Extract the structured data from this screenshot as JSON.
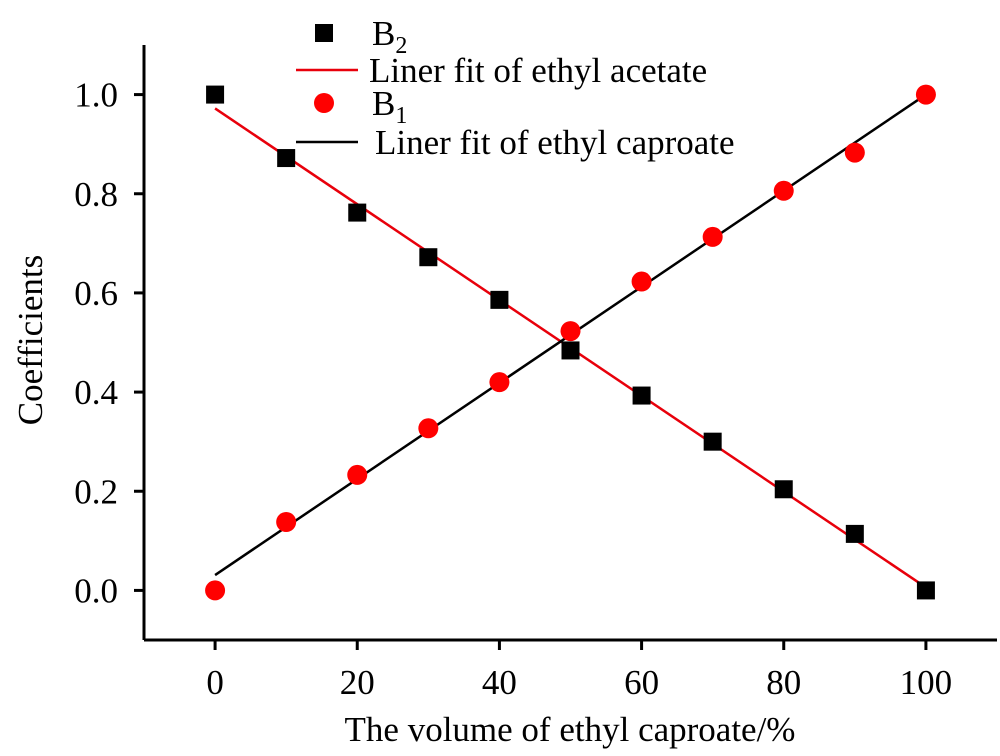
{
  "chart_data": {
    "type": "scatter",
    "title": "",
    "xlabel": "The volume of ethyl caproate/%",
    "ylabel": "Coefficients",
    "xlim": [
      -10,
      110
    ],
    "ylim": [
      -0.1,
      1.1
    ],
    "xticks": [
      0,
      20,
      40,
      60,
      80,
      100
    ],
    "yticks": [
      0.0,
      0.2,
      0.4,
      0.6,
      0.8,
      1.0
    ],
    "xtick_labels": [
      "0",
      "20",
      "40",
      "60",
      "80",
      "100"
    ],
    "ytick_labels": [
      "0.0",
      "0.2",
      "0.4",
      "0.6",
      "0.8",
      "1.0"
    ],
    "grid": false,
    "legend_position": "top-center",
    "series": [
      {
        "name": "B2",
        "name_base": "B",
        "name_sub": "2",
        "kind": "scatter",
        "marker": "square",
        "color": "#000000",
        "x": [
          0,
          10,
          20,
          30,
          40,
          50,
          60,
          70,
          80,
          90,
          100
        ],
        "y": [
          1.0,
          0.872,
          0.762,
          0.672,
          0.586,
          0.484,
          0.393,
          0.3,
          0.204,
          0.114,
          0.0
        ]
      },
      {
        "name": "Liner fit of ethyl acetate",
        "kind": "line",
        "color": "#e8000b",
        "x": [
          0,
          100
        ],
        "y": [
          0.972,
          0.006
        ]
      },
      {
        "name": "B1",
        "name_base": "B",
        "name_sub": "1",
        "kind": "scatter",
        "marker": "circle",
        "color": "#ff0000",
        "x": [
          0,
          10,
          20,
          30,
          40,
          50,
          60,
          70,
          80,
          90,
          100
        ],
        "y": [
          0.0,
          0.138,
          0.233,
          0.327,
          0.42,
          0.523,
          0.623,
          0.713,
          0.806,
          0.883,
          1.0
        ]
      },
      {
        "name": "Liner fit of ethyl caproate",
        "kind": "line",
        "color": "#000000",
        "x": [
          0,
          100
        ],
        "y": [
          0.031,
          1.0
        ]
      }
    ]
  }
}
